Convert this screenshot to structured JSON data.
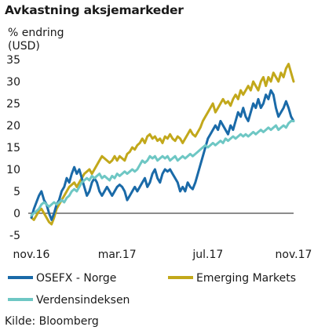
{
  "chart_data": {
    "type": "line",
    "title": "Avkastning aksjemarkeder",
    "ylabel": "% endring (USD)",
    "ylabel_lines": [
      "% endring",
      "(USD)"
    ],
    "ylim": [
      -5,
      35
    ],
    "yticks": [
      35,
      30,
      25,
      20,
      15,
      10,
      5,
      0,
      -5
    ],
    "xlim": [
      0,
      52
    ],
    "xticks": [
      {
        "pos": 0,
        "label": "nov.16"
      },
      {
        "pos": 17,
        "label": "mar.17"
      },
      {
        "pos": 35,
        "label": "jul.17"
      },
      {
        "pos": 52,
        "label": "nov.17"
      }
    ],
    "grid": false,
    "legend_position": "bottom",
    "series": [
      {
        "name": "OSEFX - Norge",
        "color": "#1a6aa8",
        "points": [
          [
            0,
            -1
          ],
          [
            0.5,
            1
          ],
          [
            1,
            2.5
          ],
          [
            1.5,
            4
          ],
          [
            2,
            5
          ],
          [
            2.5,
            3
          ],
          [
            3,
            2
          ],
          [
            3.5,
            0
          ],
          [
            4,
            -1.5
          ],
          [
            4.5,
            0
          ],
          [
            5,
            2
          ],
          [
            5.5,
            3
          ],
          [
            6,
            5
          ],
          [
            6.5,
            6
          ],
          [
            7,
            8
          ],
          [
            7.5,
            7
          ],
          [
            8,
            9
          ],
          [
            8.5,
            10.5
          ],
          [
            9,
            9
          ],
          [
            9.5,
            10
          ],
          [
            10,
            8
          ],
          [
            10.5,
            6
          ],
          [
            11,
            4
          ],
          [
            11.5,
            5
          ],
          [
            12,
            7
          ],
          [
            12.5,
            8
          ],
          [
            13,
            7
          ],
          [
            13.5,
            5
          ],
          [
            14,
            4
          ],
          [
            14.5,
            5
          ],
          [
            15,
            6
          ],
          [
            15.5,
            5
          ],
          [
            16,
            4
          ],
          [
            16.5,
            5
          ],
          [
            17,
            6
          ],
          [
            17.5,
            6.5
          ],
          [
            18,
            6
          ],
          [
            18.5,
            5
          ],
          [
            19,
            3
          ],
          [
            19.5,
            4
          ],
          [
            20,
            5
          ],
          [
            20.5,
            6
          ],
          [
            21,
            5
          ],
          [
            21.5,
            6
          ],
          [
            22,
            7
          ],
          [
            22.5,
            8
          ],
          [
            23,
            6
          ],
          [
            23.5,
            7
          ],
          [
            24,
            9
          ],
          [
            24.5,
            10
          ],
          [
            25,
            8
          ],
          [
            25.5,
            7
          ],
          [
            26,
            9
          ],
          [
            26.5,
            10
          ],
          [
            27,
            9.5
          ],
          [
            27.5,
            10
          ],
          [
            28,
            9
          ],
          [
            28.5,
            8
          ],
          [
            29,
            7
          ],
          [
            29.5,
            5
          ],
          [
            30,
            6
          ],
          [
            30.5,
            5
          ],
          [
            31,
            7
          ],
          [
            31.5,
            6
          ],
          [
            32,
            5.5
          ],
          [
            32.5,
            7
          ],
          [
            33,
            9
          ],
          [
            33.5,
            11
          ],
          [
            34,
            13
          ],
          [
            34.5,
            15
          ],
          [
            35,
            17
          ],
          [
            35.5,
            18
          ],
          [
            36,
            19
          ],
          [
            36.5,
            20
          ],
          [
            37,
            19
          ],
          [
            37.5,
            21
          ],
          [
            38,
            20
          ],
          [
            38.5,
            19
          ],
          [
            39,
            18
          ],
          [
            39.5,
            20
          ],
          [
            40,
            19
          ],
          [
            40.5,
            21
          ],
          [
            41,
            23
          ],
          [
            41.5,
            22
          ],
          [
            42,
            24
          ],
          [
            42.5,
            22
          ],
          [
            43,
            21
          ],
          [
            43.5,
            23
          ],
          [
            44,
            25
          ],
          [
            44.5,
            24
          ],
          [
            45,
            26
          ],
          [
            45.5,
            24
          ],
          [
            46,
            25
          ],
          [
            46.5,
            27
          ],
          [
            47,
            26
          ],
          [
            47.5,
            28
          ],
          [
            48,
            27
          ],
          [
            48.5,
            24
          ],
          [
            49,
            22
          ],
          [
            49.5,
            23
          ],
          [
            50,
            24
          ],
          [
            50.5,
            25.5
          ],
          [
            51,
            24
          ],
          [
            51.5,
            22
          ],
          [
            52,
            21
          ]
        ]
      },
      {
        "name": "Emerging Markets",
        "color": "#c2a81b",
        "points": [
          [
            0,
            -1
          ],
          [
            0.5,
            -1.5
          ],
          [
            1,
            -0.5
          ],
          [
            1.5,
            0.5
          ],
          [
            2,
            1
          ],
          [
            2.5,
            0
          ],
          [
            3,
            -1
          ],
          [
            3.5,
            -2
          ],
          [
            4,
            -2.5
          ],
          [
            4.5,
            -1
          ],
          [
            5,
            1
          ],
          [
            5.5,
            2
          ],
          [
            6,
            3
          ],
          [
            6.5,
            4
          ],
          [
            7,
            5
          ],
          [
            7.5,
            6
          ],
          [
            8,
            6.5
          ],
          [
            8.5,
            7
          ],
          [
            9,
            6
          ],
          [
            9.5,
            7
          ],
          [
            10,
            8
          ],
          [
            10.5,
            9
          ],
          [
            11,
            9.5
          ],
          [
            11.5,
            10
          ],
          [
            12,
            9
          ],
          [
            12.5,
            10
          ],
          [
            13,
            11
          ],
          [
            13.5,
            12
          ],
          [
            14,
            13
          ],
          [
            14.5,
            12.5
          ],
          [
            15,
            12
          ],
          [
            15.5,
            11.5
          ],
          [
            16,
            12
          ],
          [
            16.5,
            13
          ],
          [
            17,
            12
          ],
          [
            17.5,
            13
          ],
          [
            18,
            12.5
          ],
          [
            18.5,
            12
          ],
          [
            19,
            13.5
          ],
          [
            19.5,
            14
          ],
          [
            20,
            15
          ],
          [
            20.5,
            14.5
          ],
          [
            21,
            15.5
          ],
          [
            21.5,
            16
          ],
          [
            22,
            17
          ],
          [
            22.5,
            16
          ],
          [
            23,
            17.5
          ],
          [
            23.5,
            18
          ],
          [
            24,
            17
          ],
          [
            24.5,
            17.5
          ],
          [
            25,
            16.5
          ],
          [
            25.5,
            17
          ],
          [
            26,
            16
          ],
          [
            26.5,
            17.5
          ],
          [
            27,
            17
          ],
          [
            27.5,
            18
          ],
          [
            28,
            17
          ],
          [
            28.5,
            16.5
          ],
          [
            29,
            17.5
          ],
          [
            29.5,
            17
          ],
          [
            30,
            16
          ],
          [
            30.5,
            17
          ],
          [
            31,
            18
          ],
          [
            31.5,
            19
          ],
          [
            32,
            18
          ],
          [
            32.5,
            17.5
          ],
          [
            33,
            18.5
          ],
          [
            33.5,
            19.5
          ],
          [
            34,
            21
          ],
          [
            34.5,
            22
          ],
          [
            35,
            23
          ],
          [
            35.5,
            24
          ],
          [
            36,
            25
          ],
          [
            36.5,
            23
          ],
          [
            37,
            24
          ],
          [
            37.5,
            25
          ],
          [
            38,
            26
          ],
          [
            38.5,
            25
          ],
          [
            39,
            25.5
          ],
          [
            39.5,
            24.5
          ],
          [
            40,
            26
          ],
          [
            40.5,
            27
          ],
          [
            41,
            26
          ],
          [
            41.5,
            28
          ],
          [
            42,
            27
          ],
          [
            42.5,
            28
          ],
          [
            43,
            29
          ],
          [
            43.5,
            28
          ],
          [
            44,
            30
          ],
          [
            44.5,
            29
          ],
          [
            45,
            28
          ],
          [
            45.5,
            30
          ],
          [
            46,
            31
          ],
          [
            46.5,
            29
          ],
          [
            47,
            31
          ],
          [
            47.5,
            30
          ],
          [
            48,
            32
          ],
          [
            48.5,
            31
          ],
          [
            49,
            30
          ],
          [
            49.5,
            32
          ],
          [
            50,
            31
          ],
          [
            50.5,
            33
          ],
          [
            51,
            34
          ],
          [
            51.5,
            32
          ],
          [
            52,
            30
          ]
        ]
      },
      {
        "name": "Verdensindeksen",
        "color": "#6ec7c4",
        "points": [
          [
            0,
            -0.5
          ],
          [
            0.5,
            0
          ],
          [
            1,
            0.5
          ],
          [
            1.5,
            1
          ],
          [
            2,
            2
          ],
          [
            2.5,
            2.5
          ],
          [
            3,
            2
          ],
          [
            3.5,
            1.5
          ],
          [
            4,
            2
          ],
          [
            4.5,
            2.5
          ],
          [
            5,
            2
          ],
          [
            5.5,
            2.5
          ],
          [
            6,
            3
          ],
          [
            6.5,
            2.5
          ],
          [
            7,
            3.5
          ],
          [
            7.5,
            4
          ],
          [
            8,
            5
          ],
          [
            8.5,
            5.5
          ],
          [
            9,
            5
          ],
          [
            9.5,
            6
          ],
          [
            10,
            7
          ],
          [
            10.5,
            7.5
          ],
          [
            11,
            8
          ],
          [
            11.5,
            7.5
          ],
          [
            12,
            8.5
          ],
          [
            12.5,
            8
          ],
          [
            13,
            8.5
          ],
          [
            13.5,
            9
          ],
          [
            14,
            8
          ],
          [
            14.5,
            8.5
          ],
          [
            15,
            8
          ],
          [
            15.5,
            7.5
          ],
          [
            16,
            8.5
          ],
          [
            16.5,
            8
          ],
          [
            17,
            9
          ],
          [
            17.5,
            8.5
          ],
          [
            18,
            9
          ],
          [
            18.5,
            9.5
          ],
          [
            19,
            9
          ],
          [
            19.5,
            9.5
          ],
          [
            20,
            10
          ],
          [
            20.5,
            9.5
          ],
          [
            21,
            10
          ],
          [
            21.5,
            11
          ],
          [
            22,
            12
          ],
          [
            22.5,
            11.5
          ],
          [
            23,
            12
          ],
          [
            23.5,
            13
          ],
          [
            24,
            12.5
          ],
          [
            24.5,
            13
          ],
          [
            25,
            12
          ],
          [
            25.5,
            12.5
          ],
          [
            26,
            13
          ],
          [
            26.5,
            12.5
          ],
          [
            27,
            13
          ],
          [
            27.5,
            12
          ],
          [
            28,
            12.5
          ],
          [
            28.5,
            13
          ],
          [
            29,
            12
          ],
          [
            29.5,
            12.5
          ],
          [
            30,
            13
          ],
          [
            30.5,
            12.5
          ],
          [
            31,
            13
          ],
          [
            31.5,
            13.5
          ],
          [
            32,
            13
          ],
          [
            32.5,
            13.5
          ],
          [
            33,
            14
          ],
          [
            33.5,
            14.5
          ],
          [
            34,
            15
          ],
          [
            34.5,
            15.5
          ],
          [
            35,
            15
          ],
          [
            35.5,
            15.5
          ],
          [
            36,
            16
          ],
          [
            36.5,
            15.5
          ],
          [
            37,
            16
          ],
          [
            37.5,
            16.5
          ],
          [
            38,
            16
          ],
          [
            38.5,
            17
          ],
          [
            39,
            16.5
          ],
          [
            39.5,
            17
          ],
          [
            40,
            17.5
          ],
          [
            40.5,
            17
          ],
          [
            41,
            17.5
          ],
          [
            41.5,
            18
          ],
          [
            42,
            17.5
          ],
          [
            42.5,
            18
          ],
          [
            43,
            17.5
          ],
          [
            43.5,
            18
          ],
          [
            44,
            18.5
          ],
          [
            44.5,
            18
          ],
          [
            45,
            18.5
          ],
          [
            45.5,
            19
          ],
          [
            46,
            18.5
          ],
          [
            46.5,
            19
          ],
          [
            47,
            19.5
          ],
          [
            47.5,
            19
          ],
          [
            48,
            19.5
          ],
          [
            48.5,
            20
          ],
          [
            49,
            19
          ],
          [
            49.5,
            19.5
          ],
          [
            50,
            20
          ],
          [
            50.5,
            19.5
          ],
          [
            51,
            20.5
          ],
          [
            51.5,
            21
          ],
          [
            52,
            21
          ]
        ]
      }
    ],
    "source": "Kilde: Bloomberg"
  }
}
